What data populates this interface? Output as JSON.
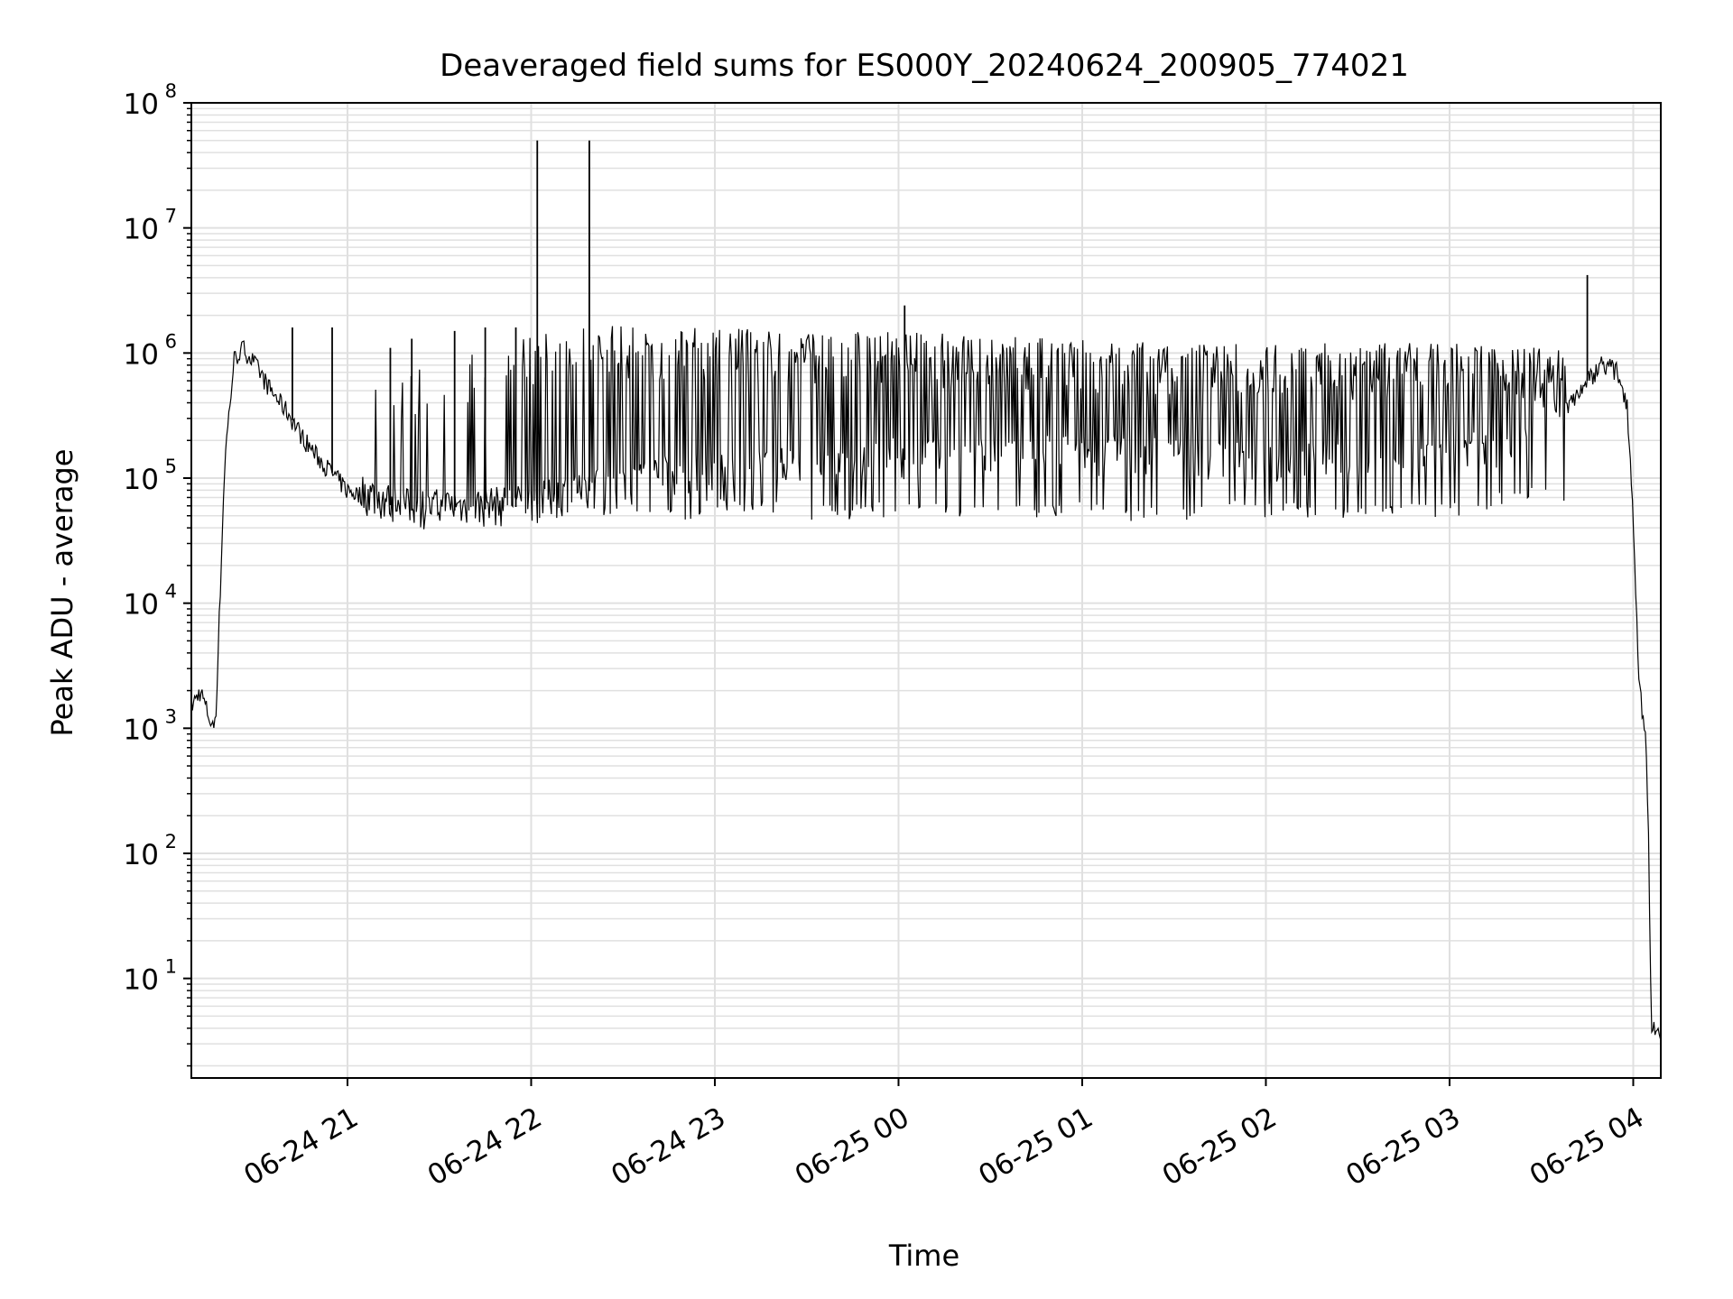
{
  "chart_data": {
    "type": "line",
    "title": "Deaveraged field sums for ES000Y_20240624_200905_774021",
    "xlabel": "Time",
    "ylabel": "Peak ADU - average",
    "yscale": "log",
    "grid": true,
    "line_color": "#000000",
    "grid_color": "#e0e0e0",
    "xlim": [
      "2024-06-24 20:09",
      "2024-06-25 04:09"
    ],
    "ylim": [
      1.6,
      100000000
    ],
    "x_ticks": [
      {
        "label": "06-24 21",
        "value": "2024-06-24 21:00"
      },
      {
        "label": "06-24 22",
        "value": "2024-06-24 22:00"
      },
      {
        "label": "06-24 23",
        "value": "2024-06-24 23:00"
      },
      {
        "label": "06-25 00",
        "value": "2024-06-25 00:00"
      },
      {
        "label": "06-25 01",
        "value": "2024-06-25 01:00"
      },
      {
        "label": "06-25 02",
        "value": "2024-06-25 02:00"
      },
      {
        "label": "06-25 03",
        "value": "2024-06-25 03:00"
      },
      {
        "label": "06-25 04",
        "value": "2024-06-25 04:00"
      }
    ],
    "y_ticks": [
      {
        "base": "10",
        "exp": "1",
        "value": 10
      },
      {
        "base": "10",
        "exp": "2",
        "value": 100
      },
      {
        "base": "10",
        "exp": "3",
        "value": 1000
      },
      {
        "base": "10",
        "exp": "4",
        "value": 10000
      },
      {
        "base": "10",
        "exp": "5",
        "value": 100000
      },
      {
        "base": "10",
        "exp": "6",
        "value": 1000000
      },
      {
        "base": "10",
        "exp": "7",
        "value": 10000000
      },
      {
        "base": "10",
        "exp": "8",
        "value": 100000000
      }
    ],
    "series": [
      {
        "envelope": {
          "x": [
            "2024-06-24 20:09",
            "2024-06-24 20:12",
            "2024-06-24 20:16",
            "2024-06-24 20:17",
            "2024-06-24 20:20",
            "2024-06-24 20:23",
            "2024-06-24 20:26",
            "2024-06-24 20:30",
            "2024-06-24 20:35",
            "2024-06-24 20:40",
            "2024-06-24 20:45",
            "2024-06-24 20:50",
            "2024-06-24 20:55",
            "2024-06-24 21:00",
            "2024-06-24 21:10",
            "2024-06-24 21:20",
            "2024-06-24 21:40",
            "2024-06-24 22:00",
            "2024-06-24 22:20",
            "2024-06-24 22:40",
            "2024-06-24 23:00",
            "2024-06-24 23:30",
            "2024-06-25 00:00",
            "2024-06-25 00:30",
            "2024-06-25 01:00",
            "2024-06-25 01:30",
            "2024-06-25 02:00",
            "2024-06-25 02:30",
            "2024-06-25 03:00",
            "2024-06-25 03:20",
            "2024-06-25 03:35",
            "2024-06-25 03:45",
            "2024-06-25 03:50",
            "2024-06-25 03:55",
            "2024-06-25 03:58",
            "2024-06-25 04:00",
            "2024-06-25 04:02",
            "2024-06-25 04:04",
            "2024-06-25 04:05",
            "2024-06-25 04:06",
            "2024-06-25 04:09"
          ],
          "y": [
            1500,
            2000,
            1000,
            1300,
            150000,
            900000,
            1100000,
            800000,
            500000,
            350000,
            220000,
            150000,
            110000,
            80000,
            65000,
            55000,
            55000,
            60000,
            80000,
            100000,
            110000,
            120000,
            140000,
            140000,
            150000,
            140000,
            130000,
            130000,
            150000,
            180000,
            300000,
            600000,
            850000,
            700000,
            400000,
            50000,
            2000,
            1000,
            130,
            4,
            4
          ]
        },
        "dips": {
          "x": [
            "2024-06-24 22:10",
            "2024-06-24 22:20",
            "2024-06-24 22:30",
            "2024-06-24 22:40",
            "2024-06-24 22:50",
            "2024-06-24 23:00",
            "2024-06-24 23:10",
            "2024-06-24 23:20",
            "2024-06-24 23:30",
            "2024-06-24 23:40",
            "2024-06-24 23:50",
            "2024-06-25 00:00",
            "2024-06-25 00:10",
            "2024-06-25 00:20",
            "2024-06-25 00:30",
            "2024-06-25 00:40",
            "2024-06-25 00:50",
            "2024-06-25 01:00",
            "2024-06-25 01:10",
            "2024-06-25 01:20",
            "2024-06-25 01:30",
            "2024-06-25 01:40",
            "2024-06-25 01:50",
            "2024-06-25 02:00",
            "2024-06-25 02:10",
            "2024-06-25 02:20",
            "2024-06-25 02:30",
            "2024-06-25 02:40",
            "2024-06-25 02:50",
            "2024-06-25 03:00",
            "2024-06-25 03:10",
            "2024-06-25 03:20"
          ],
          "y": [
            60000,
            55000,
            58000,
            52000,
            50000,
            60000,
            55000,
            58000,
            52000,
            50000,
            55000,
            53000,
            55000,
            52000,
            54000,
            50000,
            52000,
            55000,
            50000,
            48000,
            52000,
            50000,
            55000,
            52000,
            55000,
            50000,
            52000,
            55000,
            55000,
            52000,
            60000,
            70000
          ]
        },
        "spikes": {
          "x": [
            "2024-06-24 20:42",
            "2024-06-24 20:55",
            "2024-06-24 21:14",
            "2024-06-24 21:21",
            "2024-06-24 21:35",
            "2024-06-24 21:45",
            "2024-06-24 21:55",
            "2024-06-24 22:02",
            "2024-06-24 22:19",
            "2024-06-25 00:02",
            "2024-06-25 03:45"
          ],
          "y": [
            1600000,
            1600000,
            1100000,
            1300000,
            1500000,
            1600000,
            1600000,
            50000000,
            50000000,
            2400000,
            4200000
          ]
        },
        "band_top": {
          "x": [
            "2024-06-24 21:00",
            "2024-06-24 21:30",
            "2024-06-24 22:00",
            "2024-06-24 22:30",
            "2024-06-24 23:00",
            "2024-06-24 23:30",
            "2024-06-25 00:00",
            "2024-06-25 00:30",
            "2024-06-25 01:00",
            "2024-06-25 01:30",
            "2024-06-25 02:00",
            "2024-06-25 02:30",
            "2024-06-25 03:00",
            "2024-06-25 03:30"
          ],
          "y": [
            600000,
            900000,
            1500000,
            1700000,
            1600000,
            1500000,
            1500000,
            1400000,
            1300000,
            1250000,
            1200000,
            1200000,
            1200000,
            1100000
          ]
        }
      }
    ]
  }
}
